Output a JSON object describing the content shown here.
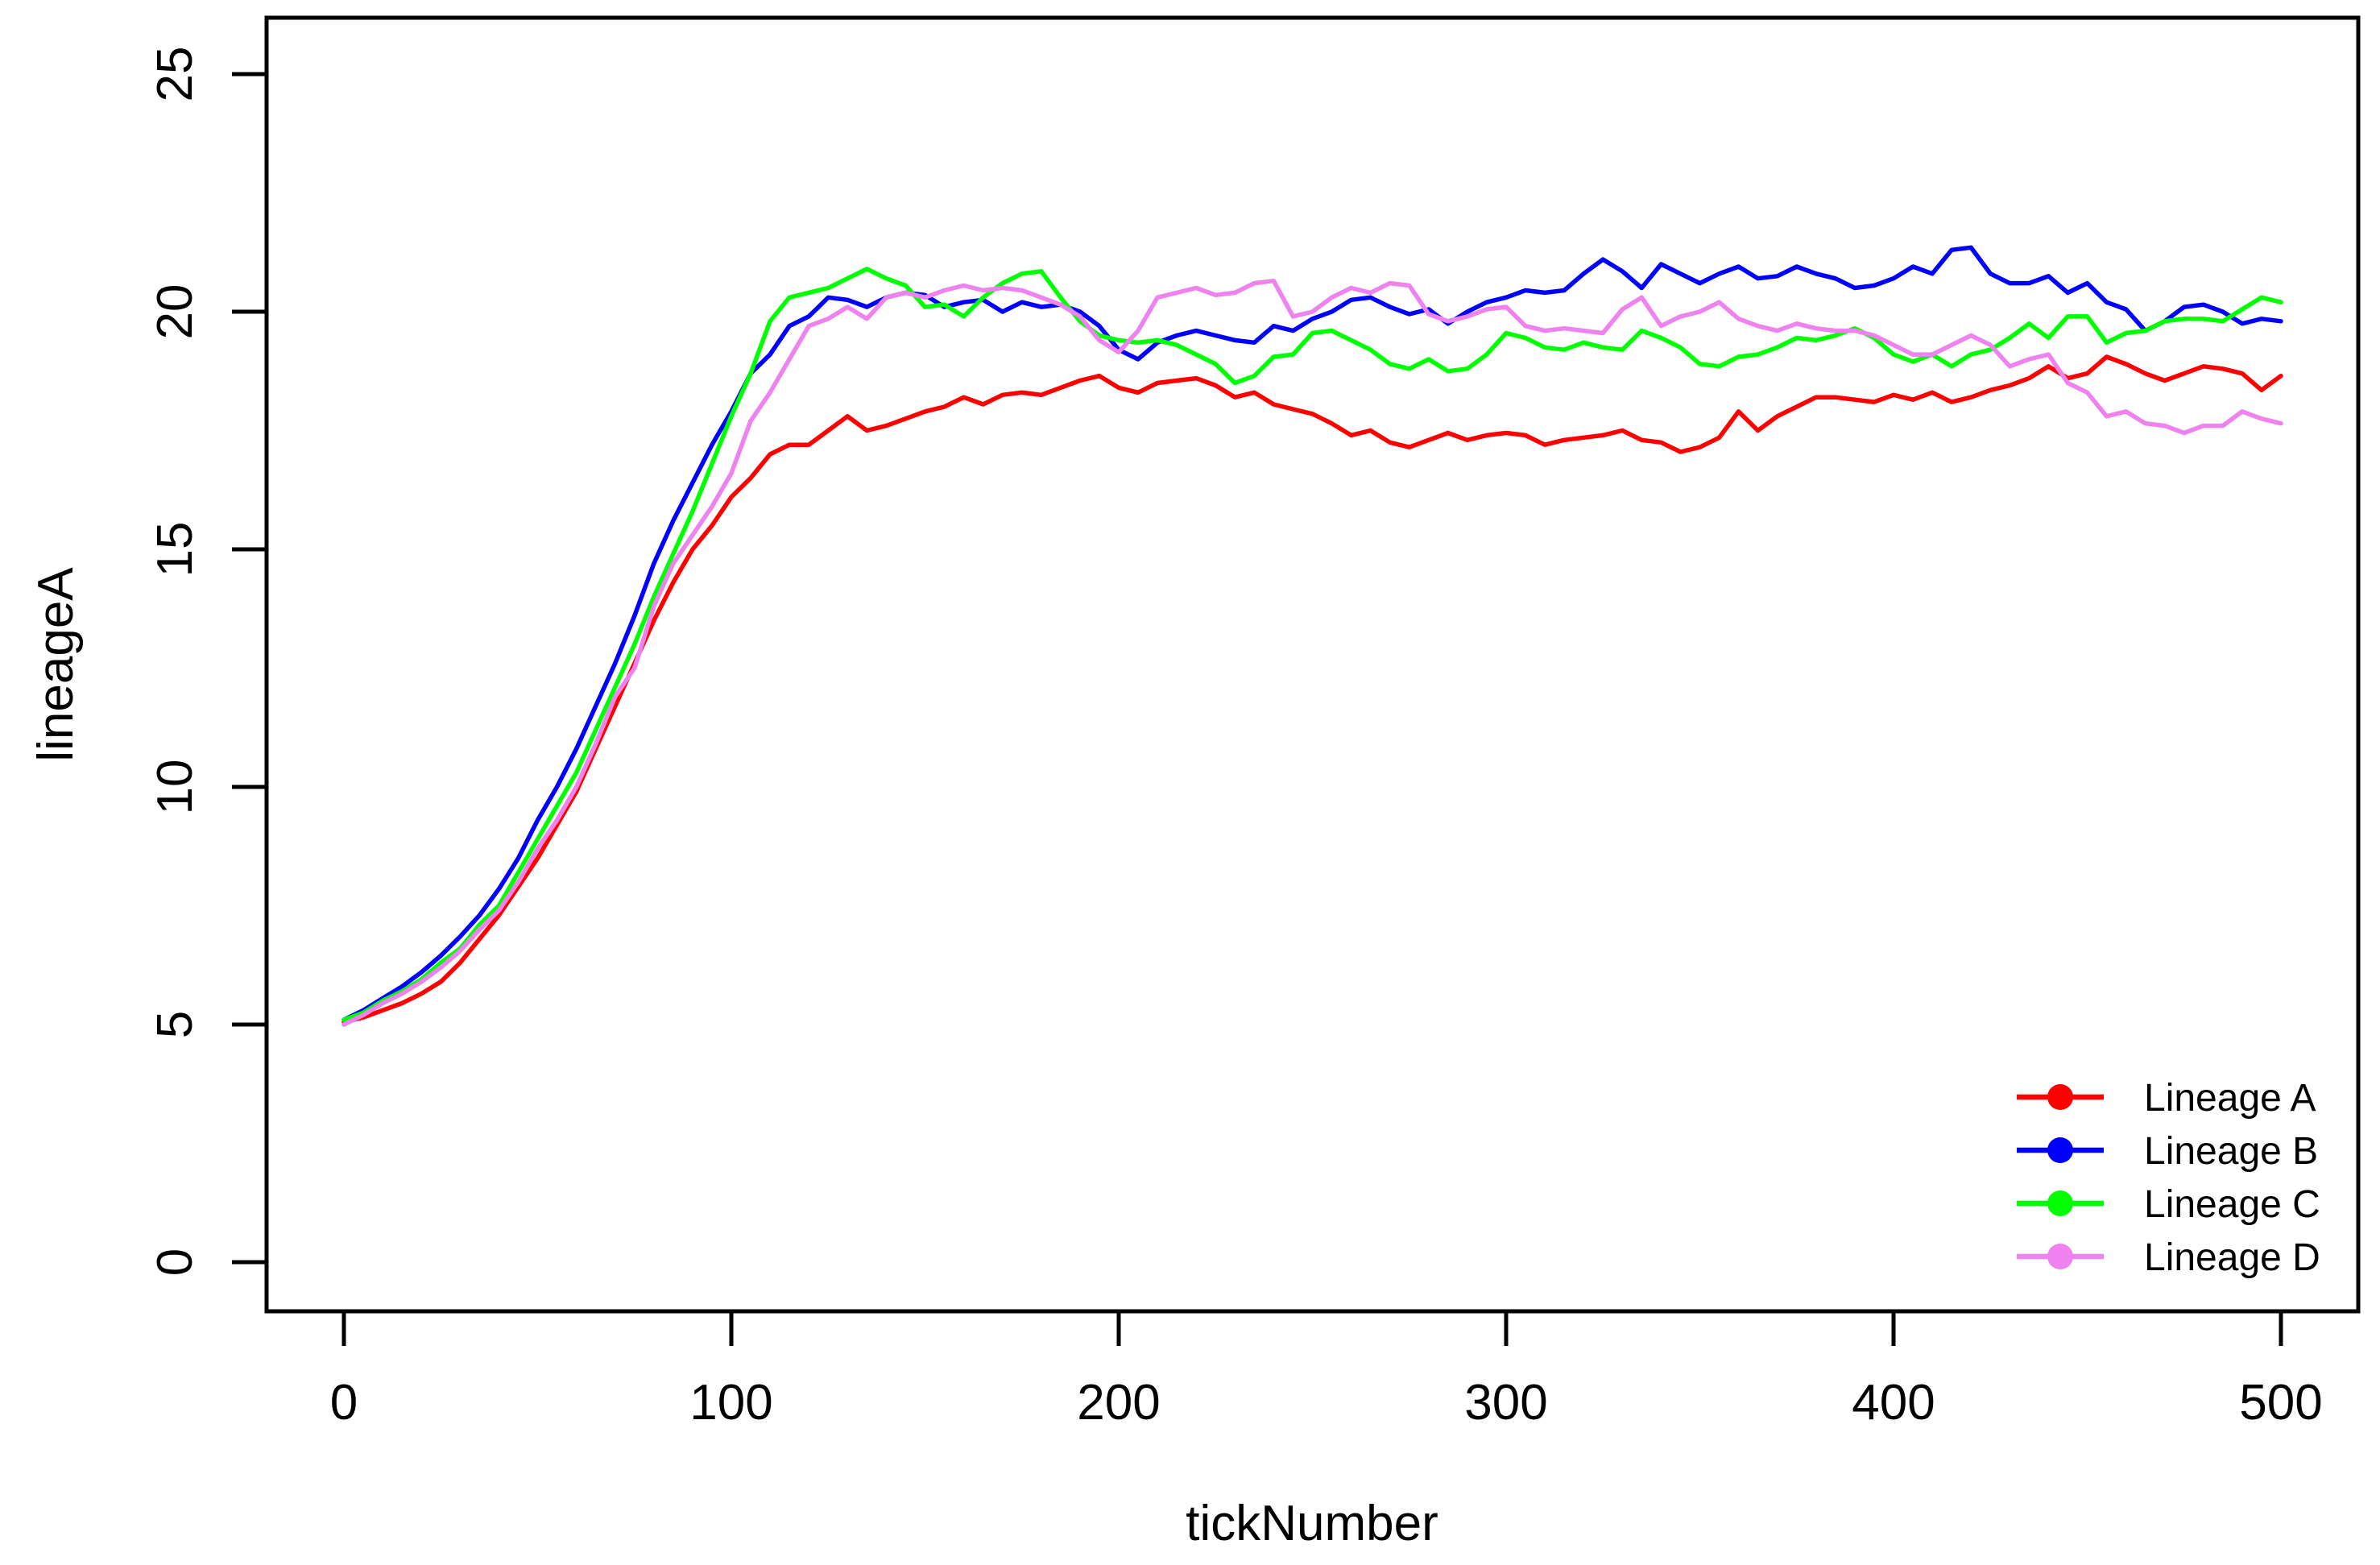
{
  "chart_data": {
    "type": "line",
    "title": "",
    "xlabel": "tickNumber",
    "ylabel": "lineageA",
    "xlim": [
      0,
      500
    ],
    "ylim": [
      0,
      25
    ],
    "x_ticks": [
      0,
      100,
      200,
      300,
      400,
      500
    ],
    "y_ticks": [
      0,
      5,
      10,
      15,
      20,
      25
    ],
    "grid": false,
    "legend_position": "bottom-right",
    "x_start": 0,
    "x_step": 5,
    "series": [
      {
        "name": "Lineage A",
        "color": "#FF0000",
        "values": [
          5.05,
          5.15,
          5.3,
          5.45,
          5.65,
          5.9,
          6.3,
          6.8,
          7.3,
          7.9,
          8.5,
          9.2,
          9.9,
          10.8,
          11.7,
          12.6,
          13.5,
          14.3,
          15.0,
          15.5,
          16.1,
          16.5,
          17.0,
          17.2,
          17.2,
          17.5,
          17.8,
          17.5,
          17.6,
          17.75,
          17.9,
          18.0,
          18.2,
          18.05,
          18.25,
          18.3,
          18.25,
          18.4,
          18.55,
          18.65,
          18.4,
          18.3,
          18.5,
          18.55,
          18.6,
          18.45,
          18.2,
          18.3,
          18.05,
          17.95,
          17.85,
          17.65,
          17.4,
          17.5,
          17.25,
          17.15,
          17.3,
          17.45,
          17.3,
          17.4,
          17.45,
          17.4,
          17.2,
          17.3,
          17.35,
          17.4,
          17.5,
          17.3,
          17.25,
          17.05,
          17.15,
          17.35,
          17.9,
          17.5,
          17.8,
          18.0,
          18.2,
          18.2,
          18.15,
          18.1,
          18.25,
          18.15,
          18.3,
          18.1,
          18.2,
          18.35,
          18.45,
          18.6,
          18.85,
          18.6,
          18.7,
          19.05,
          18.9,
          18.7,
          18.55,
          18.7,
          18.85,
          18.8,
          18.7,
          18.35,
          18.65
        ]
      },
      {
        "name": "Lineage B",
        "color": "#0000FF",
        "values": [
          5.1,
          5.3,
          5.55,
          5.8,
          6.1,
          6.45,
          6.85,
          7.3,
          7.85,
          8.5,
          9.3,
          10.0,
          10.8,
          11.7,
          12.6,
          13.6,
          14.7,
          15.6,
          16.4,
          17.2,
          17.9,
          18.7,
          19.1,
          19.7,
          19.9,
          20.3,
          20.25,
          20.1,
          20.3,
          20.4,
          20.35,
          20.1,
          20.2,
          20.25,
          20.0,
          20.2,
          20.1,
          20.15,
          20.0,
          19.7,
          19.2,
          19.0,
          19.35,
          19.5,
          19.6,
          19.5,
          19.4,
          19.35,
          19.7,
          19.6,
          19.85,
          20.0,
          20.25,
          20.3,
          20.1,
          19.95,
          20.05,
          19.75,
          20.0,
          20.2,
          20.3,
          20.45,
          20.4,
          20.45,
          20.8,
          21.1,
          20.85,
          20.5,
          21.0,
          20.8,
          20.6,
          20.8,
          20.95,
          20.7,
          20.75,
          20.95,
          20.8,
          20.7,
          20.5,
          20.55,
          20.7,
          20.95,
          20.8,
          21.3,
          21.35,
          20.8,
          20.6,
          20.6,
          20.75,
          20.4,
          20.6,
          20.2,
          20.05,
          19.6,
          19.8,
          20.1,
          20.15,
          20.0,
          19.75,
          19.85,
          19.8
        ]
      },
      {
        "name": "Lineage C",
        "color": "#00FF00",
        "values": [
          5.1,
          5.25,
          5.5,
          5.7,
          5.95,
          6.3,
          6.6,
          7.1,
          7.5,
          8.2,
          8.9,
          9.6,
          10.3,
          11.2,
          12.1,
          13.0,
          14.0,
          14.9,
          15.8,
          16.8,
          17.8,
          18.7,
          19.8,
          20.3,
          20.4,
          20.5,
          20.7,
          20.9,
          20.7,
          20.55,
          20.1,
          20.15,
          19.9,
          20.3,
          20.6,
          20.8,
          20.85,
          20.3,
          19.8,
          19.5,
          19.4,
          19.35,
          19.4,
          19.3,
          19.1,
          18.9,
          18.5,
          18.65,
          19.05,
          19.1,
          19.55,
          19.6,
          19.4,
          19.2,
          18.9,
          18.8,
          19.0,
          18.75,
          18.8,
          19.1,
          19.55,
          19.45,
          19.25,
          19.2,
          19.35,
          19.25,
          19.2,
          19.6,
          19.45,
          19.25,
          18.9,
          18.85,
          19.05,
          19.1,
          19.25,
          19.45,
          19.4,
          19.5,
          19.65,
          19.45,
          19.1,
          18.95,
          19.1,
          18.85,
          19.1,
          19.2,
          19.45,
          19.75,
          19.45,
          19.9,
          19.9,
          19.35,
          19.55,
          19.6,
          19.8,
          19.85,
          19.85,
          19.8,
          20.05,
          20.3,
          20.2
        ]
      },
      {
        "name": "Lineage D",
        "color": "#EE82EE",
        "values": [
          5.0,
          5.2,
          5.45,
          5.65,
          5.9,
          6.2,
          6.55,
          7.0,
          7.4,
          8.0,
          8.7,
          9.3,
          10.0,
          10.9,
          11.9,
          12.5,
          13.8,
          14.7,
          15.3,
          15.9,
          16.6,
          17.7,
          18.3,
          19.0,
          19.7,
          19.85,
          20.1,
          19.85,
          20.3,
          20.4,
          20.3,
          20.45,
          20.55,
          20.45,
          20.5,
          20.45,
          20.3,
          20.15,
          19.9,
          19.4,
          19.15,
          19.6,
          20.3,
          20.4,
          20.5,
          20.35,
          20.4,
          20.6,
          20.65,
          19.9,
          20.0,
          20.3,
          20.5,
          20.4,
          20.6,
          20.55,
          19.95,
          19.8,
          19.9,
          20.05,
          20.1,
          19.7,
          19.6,
          19.65,
          19.6,
          19.55,
          20.05,
          20.3,
          19.7,
          19.9,
          20.0,
          20.2,
          19.85,
          19.7,
          19.6,
          19.75,
          19.65,
          19.6,
          19.6,
          19.5,
          19.3,
          19.1,
          19.1,
          19.3,
          19.5,
          19.3,
          18.85,
          19.0,
          19.1,
          18.5,
          18.3,
          17.8,
          17.9,
          17.65,
          17.6,
          17.45,
          17.6,
          17.6,
          17.9,
          17.75,
          17.65
        ]
      }
    ]
  }
}
